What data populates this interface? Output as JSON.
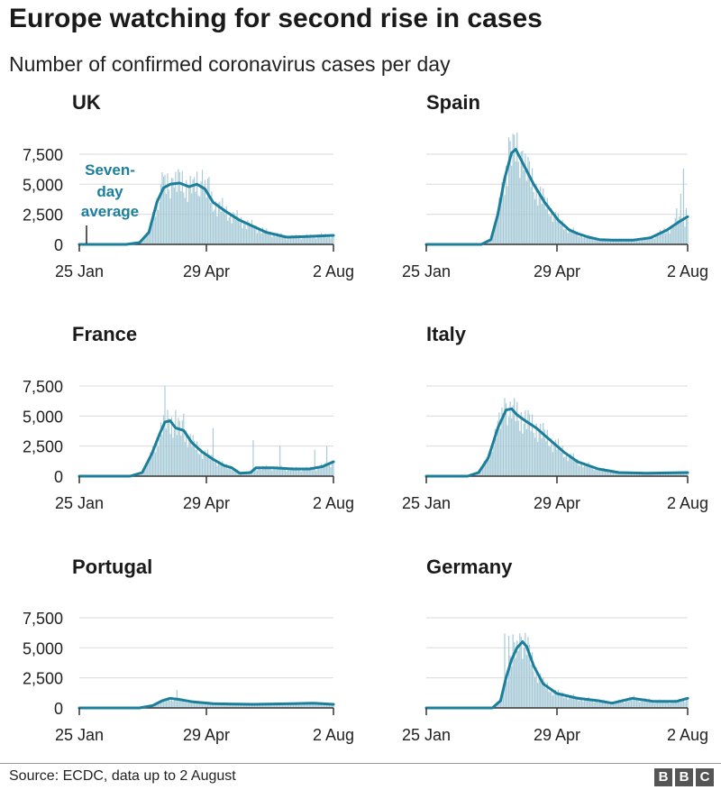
{
  "title": "Europe watching for second rise in cases",
  "subtitle": "Number of confirmed coronavirus cases per day",
  "source": "Source: ECDC, data up to 2 August",
  "logo": [
    "B",
    "B",
    "C"
  ],
  "colors": {
    "line": "#1b7f9c",
    "bars": "#a9cbd8",
    "axis": "#333333",
    "grid": "#d9d9d9"
  },
  "annotation": {
    "lines": [
      "Seven-",
      "day",
      "average"
    ],
    "chart": "UK"
  },
  "chart_data": [
    {
      "type": "bar+line",
      "title": "UK",
      "x_ticks": [
        "25 Jan",
        "29 Apr",
        "2 Aug"
      ],
      "y_ticks": [
        "7,500",
        "5,000",
        "2,500",
        "0"
      ],
      "ylim": [
        0,
        9000
      ],
      "days": 190,
      "average": [
        [
          0,
          0
        ],
        [
          35,
          0
        ],
        [
          45,
          150
        ],
        [
          52,
          1000
        ],
        [
          58,
          3500
        ],
        [
          63,
          4700
        ],
        [
          68,
          5000
        ],
        [
          75,
          5100
        ],
        [
          82,
          4800
        ],
        [
          88,
          5000
        ],
        [
          94,
          4600
        ],
        [
          100,
          3500
        ],
        [
          110,
          2700
        ],
        [
          120,
          2000
        ],
        [
          130,
          1500
        ],
        [
          140,
          1000
        ],
        [
          155,
          600
        ],
        [
          170,
          650
        ],
        [
          190,
          750
        ]
      ],
      "peaks": [
        [
          62,
          6000
        ],
        [
          70,
          5500
        ],
        [
          77,
          6100
        ],
        [
          85,
          5400
        ],
        [
          92,
          6200
        ],
        [
          97,
          5600
        ]
      ]
    },
    {
      "type": "bar+line",
      "title": "Spain",
      "x_ticks": [
        "25 Jan",
        "29 Apr",
        "2 Aug"
      ],
      "y_ticks": [
        "7,500",
        "5,000",
        "2,500",
        "0"
      ],
      "ylim": [
        0,
        9000
      ],
      "days": 190,
      "average": [
        [
          0,
          0
        ],
        [
          40,
          0
        ],
        [
          47,
          400
        ],
        [
          52,
          2500
        ],
        [
          57,
          5500
        ],
        [
          62,
          7600
        ],
        [
          65,
          7900
        ],
        [
          70,
          6800
        ],
        [
          78,
          5000
        ],
        [
          86,
          3500
        ],
        [
          96,
          2000
        ],
        [
          104,
          1200
        ],
        [
          110,
          900
        ],
        [
          118,
          600
        ],
        [
          126,
          400
        ],
        [
          135,
          350
        ],
        [
          150,
          350
        ],
        [
          163,
          550
        ],
        [
          175,
          1200
        ],
        [
          184,
          1900
        ],
        [
          190,
          2300
        ]
      ],
      "peaks": [
        [
          60,
          8900
        ],
        [
          64,
          9100
        ],
        [
          70,
          7800
        ],
        [
          75,
          6900
        ],
        [
          182,
          3000
        ],
        [
          185,
          4200
        ],
        [
          187,
          6300
        ],
        [
          189,
          3000
        ]
      ]
    },
    {
      "type": "bar+line",
      "title": "France",
      "x_ticks": [
        "25 Jan",
        "29 Apr",
        "2 Aug"
      ],
      "y_ticks": [
        "7,500",
        "5,000",
        "2,500",
        "0"
      ],
      "ylim": [
        0,
        9000
      ],
      "days": 190,
      "average": [
        [
          0,
          0
        ],
        [
          38,
          0
        ],
        [
          47,
          300
        ],
        [
          54,
          1800
        ],
        [
          60,
          3500
        ],
        [
          64,
          4500
        ],
        [
          68,
          4600
        ],
        [
          72,
          4000
        ],
        [
          78,
          3800
        ],
        [
          84,
          2800
        ],
        [
          92,
          2000
        ],
        [
          100,
          1400
        ],
        [
          108,
          900
        ],
        [
          114,
          700
        ],
        [
          120,
          250
        ],
        [
          128,
          300
        ],
        [
          132,
          700
        ],
        [
          145,
          700
        ],
        [
          160,
          600
        ],
        [
          172,
          600
        ],
        [
          182,
          800
        ],
        [
          190,
          1200
        ]
      ],
      "peaks": [
        [
          64,
          7500
        ],
        [
          67,
          4800
        ],
        [
          72,
          5500
        ],
        [
          78,
          5200
        ],
        [
          100,
          4000
        ],
        [
          130,
          3000
        ],
        [
          150,
          2500
        ],
        [
          176,
          2200
        ],
        [
          185,
          2500
        ]
      ]
    },
    {
      "type": "bar+line",
      "title": "Italy",
      "x_ticks": [
        "25 Jan",
        "29 Apr",
        "2 Aug"
      ],
      "y_ticks": [
        "7,500",
        "5,000",
        "2,500",
        "0"
      ],
      "ylim": [
        0,
        9000
      ],
      "days": 190,
      "average": [
        [
          0,
          0
        ],
        [
          30,
          0
        ],
        [
          38,
          300
        ],
        [
          45,
          1500
        ],
        [
          52,
          4000
        ],
        [
          58,
          5500
        ],
        [
          62,
          5600
        ],
        [
          66,
          5100
        ],
        [
          72,
          4600
        ],
        [
          80,
          4000
        ],
        [
          90,
          3000
        ],
        [
          100,
          2000
        ],
        [
          110,
          1200
        ],
        [
          125,
          600
        ],
        [
          140,
          300
        ],
        [
          160,
          250
        ],
        [
          190,
          300
        ]
      ],
      "peaks": [
        [
          57,
          6500
        ],
        [
          61,
          6200
        ],
        [
          63,
          5900
        ]
      ]
    },
    {
      "type": "bar+line",
      "title": "Portugal",
      "x_ticks": [
        "25 Jan",
        "29 Apr",
        "2 Aug"
      ],
      "y_ticks": [
        "7,500",
        "5,000",
        "2,500",
        "0"
      ],
      "ylim": [
        0,
        9000
      ],
      "days": 190,
      "average": [
        [
          0,
          0
        ],
        [
          45,
          0
        ],
        [
          55,
          200
        ],
        [
          62,
          600
        ],
        [
          68,
          800
        ],
        [
          75,
          700
        ],
        [
          85,
          500
        ],
        [
          100,
          350
        ],
        [
          130,
          300
        ],
        [
          160,
          350
        ],
        [
          175,
          400
        ],
        [
          190,
          300
        ]
      ],
      "peaks": [
        [
          73,
          1500
        ]
      ]
    },
    {
      "type": "bar+line",
      "title": "Germany",
      "x_ticks": [
        "25 Jan",
        "29 Apr",
        "2 Aug"
      ],
      "y_ticks": [
        "7,500",
        "5,000",
        "2,500",
        "0"
      ],
      "ylim": [
        0,
        9000
      ],
      "days": 190,
      "average": [
        [
          0,
          0
        ],
        [
          48,
          0
        ],
        [
          54,
          600
        ],
        [
          58,
          2500
        ],
        [
          62,
          4000
        ],
        [
          66,
          5000
        ],
        [
          70,
          5500
        ],
        [
          73,
          5100
        ],
        [
          78,
          3500
        ],
        [
          85,
          2000
        ],
        [
          95,
          1200
        ],
        [
          110,
          800
        ],
        [
          125,
          600
        ],
        [
          135,
          400
        ],
        [
          150,
          800
        ],
        [
          165,
          550
        ],
        [
          182,
          550
        ],
        [
          190,
          800
        ]
      ],
      "peaks": [
        [
          57,
          6200
        ],
        [
          60,
          6000
        ],
        [
          63,
          6100
        ],
        [
          66,
          5600
        ],
        [
          68,
          6200
        ]
      ]
    }
  ]
}
